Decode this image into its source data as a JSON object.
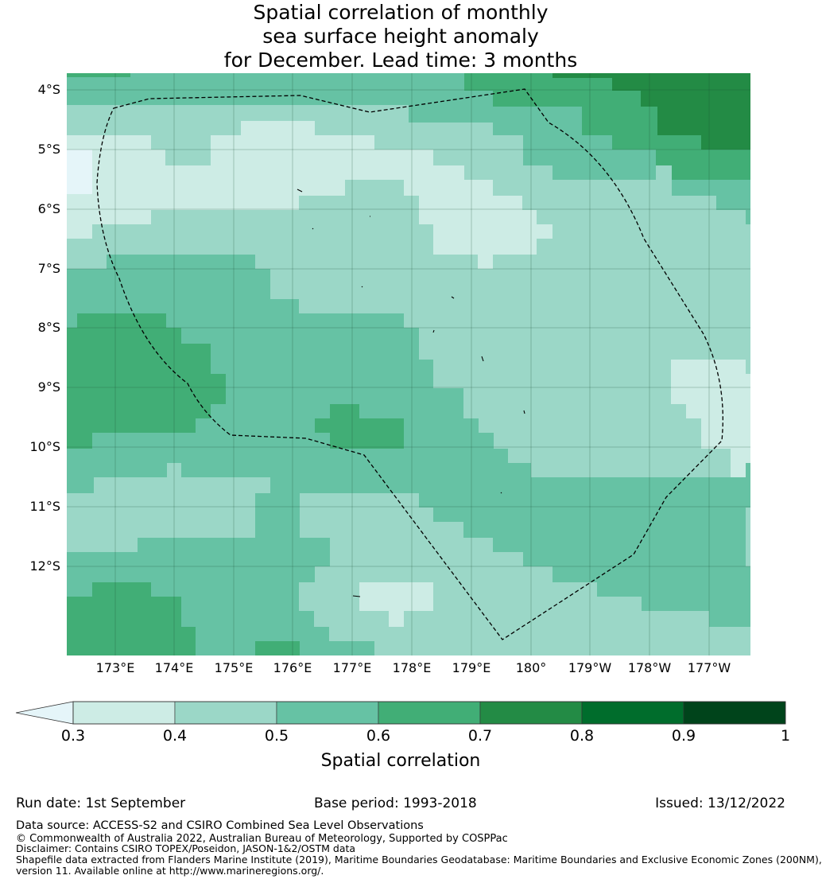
{
  "title": {
    "line1": "Spatial correlation of monthly",
    "line2": "sea surface height anomaly",
    "line3": "for December. Lead time: 3 months"
  },
  "map": {
    "lat_labels": [
      "4°S",
      "5°S",
      "6°S",
      "7°S",
      "8°S",
      "9°S",
      "10°S",
      "11°S",
      "12°S"
    ],
    "lon_labels": [
      "173°E",
      "174°E",
      "175°E",
      "176°E",
      "177°E",
      "178°E",
      "179°E",
      "180°",
      "179°W",
      "178°W",
      "177°W"
    ],
    "colors": {
      "c03": "#cdece5",
      "c04": "#9bd7c7",
      "c05": "#66c2a4",
      "c06": "#41ae76",
      "c07": "#238b45",
      "c08": "#006d2c",
      "c09": "#00441b",
      "below": "#e5f5f9"
    }
  },
  "colorbar": {
    "ticks": [
      "0.3",
      "0.4",
      "0.5",
      "0.6",
      "0.7",
      "0.8",
      "0.9",
      "1"
    ],
    "label": "Spatial correlation"
  },
  "footer": {
    "run_date": "Run date: 1st September",
    "base_period": "Base period: 1993-2018",
    "issued": "Issued: 13/12/2022",
    "data_source": "Data source: ACCESS-S2 and CSIRO Combined Sea Level Observations",
    "copyright": "© Commonwealth of Australia 2022, Australian Bureau of Meteorology, Supported by COSPPac",
    "disclaimer": "Disclaimer: Contains CSIRO TOPEX/Poseidon, JASON-1&2/OSTM data",
    "shapefile_line1": "Shapefile data extracted from Flanders Marine Institute (2019), Maritime Boundaries Geodatabase: Maritime Boundaries and Exclusive Economic Zones (200NM),",
    "shapefile_line2": "version 11. Available online at http://www.marineregions.org/."
  }
}
